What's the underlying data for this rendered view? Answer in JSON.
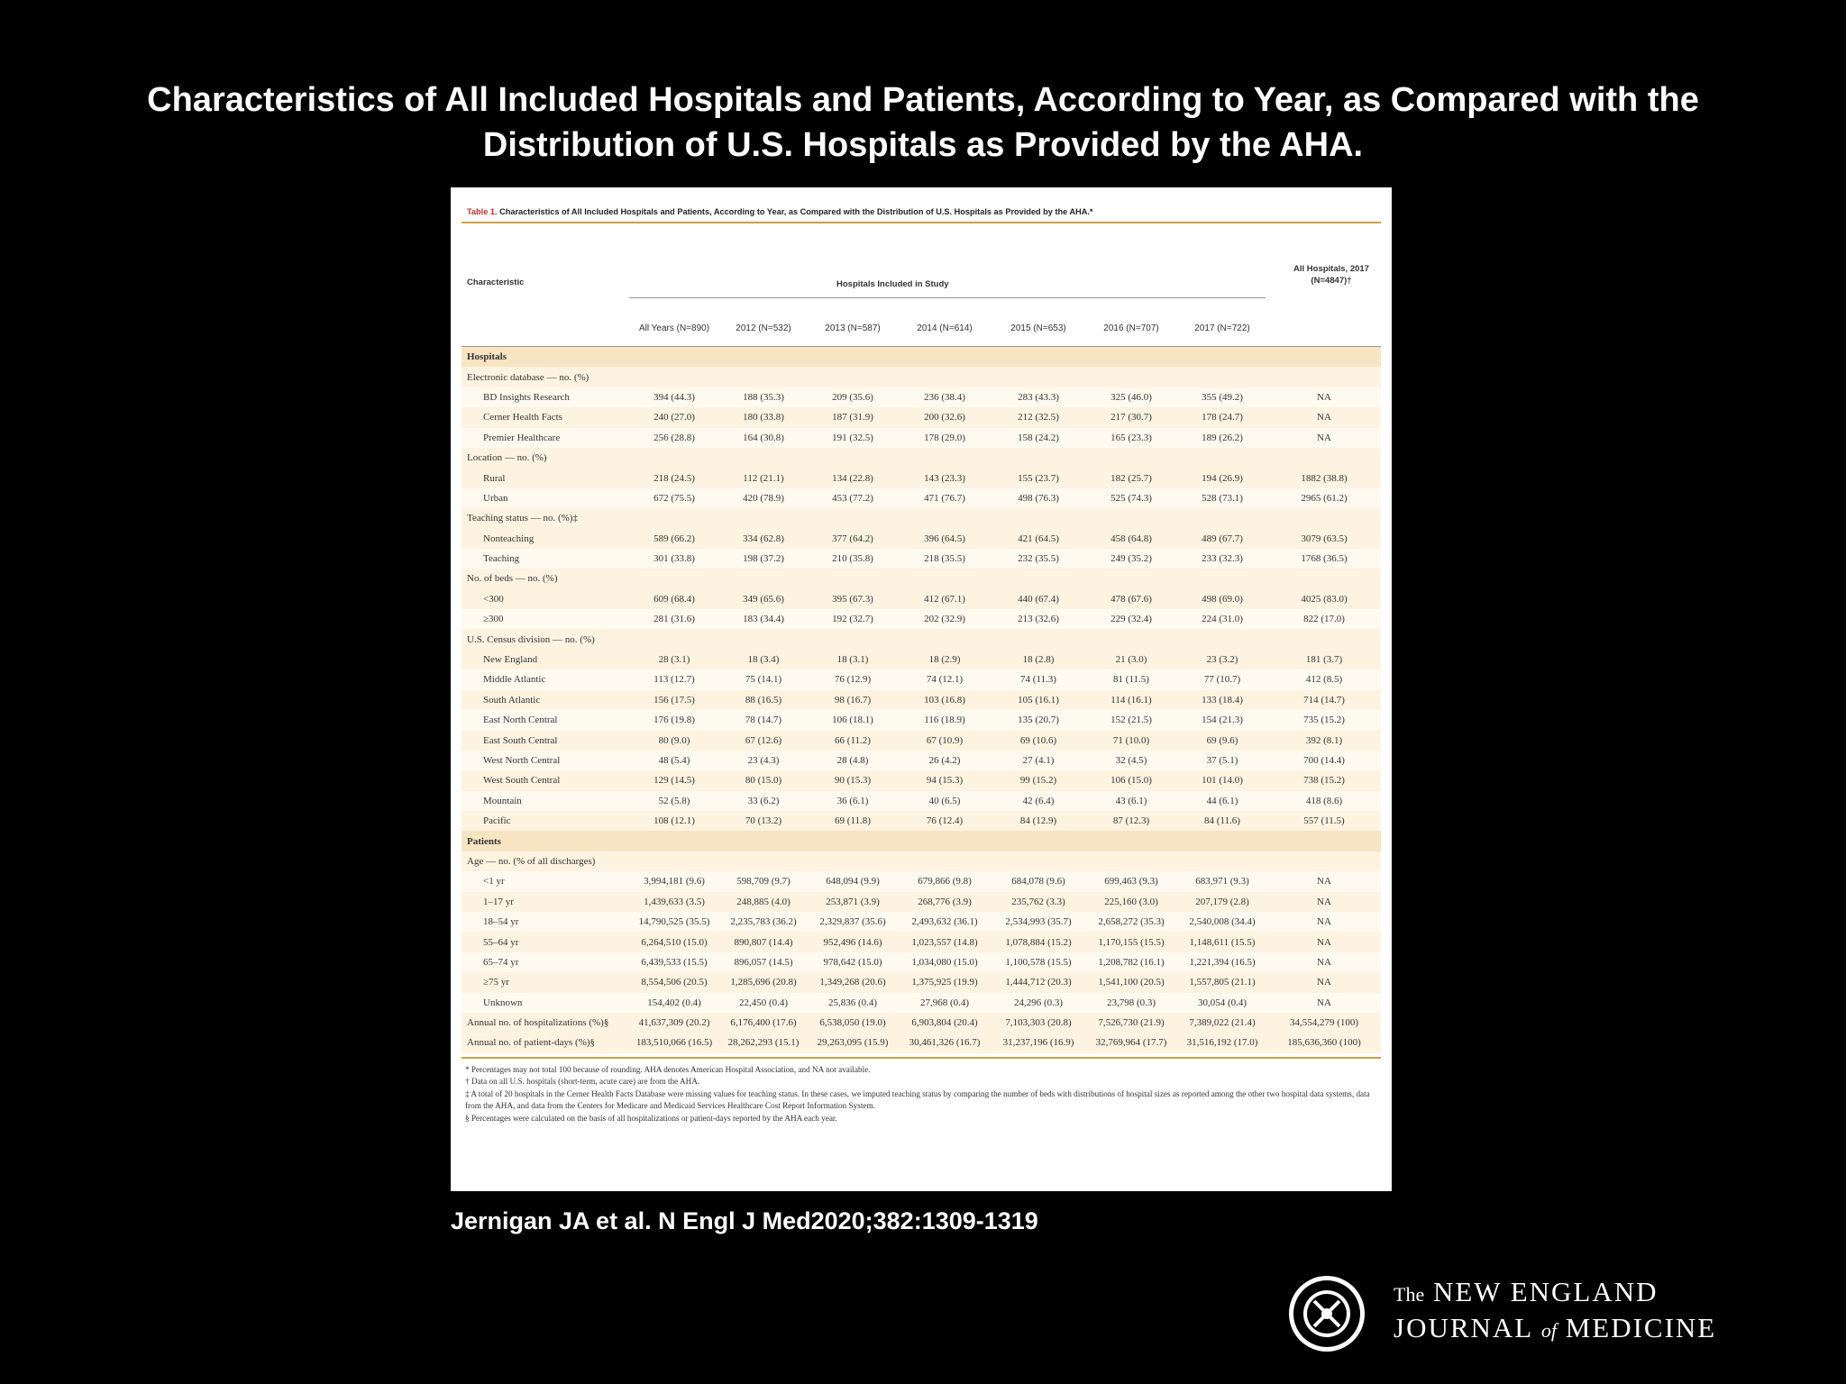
{
  "slide": {
    "title": "Characteristics of All Included Hospitals and Patients, According to Year, as Compared with the Distribution of U.S. Hospitals as Provided by the AHA.",
    "citation": "Jernigan JA et al. N Engl J Med2020;382:1309-1319"
  },
  "logo": {
    "the": "The",
    "line1": "NEW ENGLAND",
    "line2a": "JOURNAL",
    "of": "of",
    "line2b": "MEDICINE",
    "seal_icon": "nejm-seal-icon"
  },
  "table": {
    "label": "Table 1.",
    "caption": "Characteristics of All Included Hospitals and Patients, According to Year, as Compared with the Distribution of U.S. Hospitals as Provided by the AHA.*",
    "header": {
      "characteristic": "Characteristic",
      "group": "Hospitals Included in Study",
      "aha": "All Hospitals, 2017 (N=4847)†"
    },
    "columns": [
      "All Years (N=890)",
      "2012 (N=532)",
      "2013 (N=587)",
      "2014 (N=614)",
      "2015 (N=653)",
      "2016 (N=707)",
      "2017 (N=722)",
      ""
    ],
    "rows": [
      {
        "type": "section",
        "label": "Hospitals"
      },
      {
        "type": "group",
        "label": "Electronic database — no. (%)"
      },
      {
        "type": "sub",
        "label": "BD Insights Research",
        "values": [
          "394 (44.3)",
          "188 (35.3)",
          "209 (35.6)",
          "236 (38.4)",
          "283 (43.3)",
          "325 (46.0)",
          "355 (49.2)",
          "NA"
        ]
      },
      {
        "type": "sub",
        "label": "Cerner Health Facts",
        "values": [
          "240 (27.0)",
          "180 (33.8)",
          "187 (31.9)",
          "200 (32.6)",
          "212 (32.5)",
          "217 (30.7)",
          "178 (24.7)",
          "NA"
        ]
      },
      {
        "type": "sub",
        "label": "Premier Healthcare",
        "values": [
          "256 (28.8)",
          "164 (30.8)",
          "191 (32.5)",
          "178 (29.0)",
          "158 (24.2)",
          "165 (23.3)",
          "189 (26.2)",
          "NA"
        ]
      },
      {
        "type": "group",
        "label": "Location — no. (%)"
      },
      {
        "type": "sub",
        "label": "Rural",
        "values": [
          "218 (24.5)",
          "112 (21.1)",
          "134 (22.8)",
          "143 (23.3)",
          "155 (23.7)",
          "182 (25.7)",
          "194 (26.9)",
          "1882 (38.8)"
        ]
      },
      {
        "type": "sub",
        "label": "Urban",
        "values": [
          "672 (75.5)",
          "420 (78.9)",
          "453 (77.2)",
          "471 (76.7)",
          "498 (76.3)",
          "525 (74.3)",
          "528 (73.1)",
          "2965 (61.2)"
        ]
      },
      {
        "type": "group",
        "label": "Teaching status — no. (%)‡"
      },
      {
        "type": "sub",
        "label": "Nonteaching",
        "values": [
          "589 (66.2)",
          "334 (62.8)",
          "377 (64.2)",
          "396 (64.5)",
          "421 (64.5)",
          "458 (64.8)",
          "489 (67.7)",
          "3079 (63.5)"
        ]
      },
      {
        "type": "sub",
        "label": "Teaching",
        "values": [
          "301 (33.8)",
          "198 (37.2)",
          "210 (35.8)",
          "218 (35.5)",
          "232 (35.5)",
          "249 (35.2)",
          "233 (32.3)",
          "1768 (36.5)"
        ]
      },
      {
        "type": "group",
        "label": "No. of beds — no. (%)"
      },
      {
        "type": "sub",
        "label": "<300",
        "values": [
          "609 (68.4)",
          "349 (65.6)",
          "395 (67.3)",
          "412 (67.1)",
          "440 (67.4)",
          "478 (67.6)",
          "498 (69.0)",
          "4025 (83.0)"
        ]
      },
      {
        "type": "sub",
        "label": "≥300",
        "values": [
          "281 (31.6)",
          "183 (34.4)",
          "192 (32.7)",
          "202 (32.9)",
          "213 (32.6)",
          "229 (32.4)",
          "224 (31.0)",
          "822 (17.0)"
        ]
      },
      {
        "type": "group",
        "label": "U.S. Census division — no. (%)"
      },
      {
        "type": "sub",
        "label": "New England",
        "values": [
          "28 (3.1)",
          "18 (3.4)",
          "18 (3.1)",
          "18 (2.9)",
          "18 (2.8)",
          "21 (3.0)",
          "23 (3.2)",
          "181 (3.7)"
        ]
      },
      {
        "type": "sub",
        "label": "Middle Atlantic",
        "values": [
          "113 (12.7)",
          "75 (14.1)",
          "76 (12.9)",
          "74 (12.1)",
          "74 (11.3)",
          "81 (11.5)",
          "77 (10.7)",
          "412 (8.5)"
        ]
      },
      {
        "type": "sub",
        "label": "South Atlantic",
        "values": [
          "156 (17.5)",
          "88 (16.5)",
          "98 (16.7)",
          "103 (16.8)",
          "105 (16.1)",
          "114 (16.1)",
          "133 (18.4)",
          "714 (14.7)"
        ]
      },
      {
        "type": "sub",
        "label": "East North Central",
        "values": [
          "176 (19.8)",
          "78 (14.7)",
          "106 (18.1)",
          "116 (18.9)",
          "135 (20.7)",
          "152 (21.5)",
          "154 (21.3)",
          "735 (15.2)"
        ]
      },
      {
        "type": "sub",
        "label": "East South Central",
        "values": [
          "80 (9.0)",
          "67 (12.6)",
          "66 (11.2)",
          "67 (10.9)",
          "69 (10.6)",
          "71 (10.0)",
          "69 (9.6)",
          "392 (8.1)"
        ]
      },
      {
        "type": "sub",
        "label": "West North Central",
        "values": [
          "48 (5.4)",
          "23 (4.3)",
          "28 (4.8)",
          "26 (4.2)",
          "27 (4.1)",
          "32 (4.5)",
          "37 (5.1)",
          "700 (14.4)"
        ]
      },
      {
        "type": "sub",
        "label": "West South Central",
        "values": [
          "129 (14.5)",
          "80 (15.0)",
          "90 (15.3)",
          "94 (15.3)",
          "99 (15.2)",
          "106 (15.0)",
          "101 (14.0)",
          "738 (15.2)"
        ]
      },
      {
        "type": "sub",
        "label": "Mountain",
        "values": [
          "52 (5.8)",
          "33 (6.2)",
          "36 (6.1)",
          "40 (6.5)",
          "42 (6.4)",
          "43 (6.1)",
          "44 (6.1)",
          "418 (8.6)"
        ]
      },
      {
        "type": "sub",
        "label": "Pacific",
        "values": [
          "108 (12.1)",
          "70 (13.2)",
          "69 (11.8)",
          "76 (12.4)",
          "84 (12.9)",
          "87 (12.3)",
          "84 (11.6)",
          "557 (11.5)"
        ]
      },
      {
        "type": "section",
        "label": "Patients"
      },
      {
        "type": "group",
        "label": "Age — no. (% of all discharges)"
      },
      {
        "type": "sub",
        "label": "<1 yr",
        "values": [
          "3,994,181 (9.6)",
          "598,709 (9.7)",
          "648,094 (9.9)",
          "679,866 (9.8)",
          "684,078 (9.6)",
          "699,463 (9.3)",
          "683,971 (9.3)",
          "NA"
        ]
      },
      {
        "type": "sub",
        "label": "1–17 yr",
        "values": [
          "1,439,633 (3.5)",
          "248,885 (4.0)",
          "253,871 (3.9)",
          "268,776 (3.9)",
          "235,762 (3.3)",
          "225,160 (3.0)",
          "207,179 (2.8)",
          "NA"
        ]
      },
      {
        "type": "sub",
        "label": "18–54 yr",
        "values": [
          "14,790,525 (35.5)",
          "2,235,783 (36.2)",
          "2,329,837 (35.6)",
          "2,493,632 (36.1)",
          "2,534,993 (35.7)",
          "2,658,272 (35.3)",
          "2,540,008 (34.4)",
          "NA"
        ]
      },
      {
        "type": "sub",
        "label": "55–64 yr",
        "values": [
          "6,264,510 (15.0)",
          "890,807 (14.4)",
          "952,496 (14.6)",
          "1,023,557 (14.8)",
          "1,078,884 (15.2)",
          "1,170,155 (15.5)",
          "1,148,611 (15.5)",
          "NA"
        ]
      },
      {
        "type": "sub",
        "label": "65–74 yr",
        "values": [
          "6,439,533 (15.5)",
          "896,057 (14.5)",
          "978,642 (15.0)",
          "1,034,080 (15.0)",
          "1,100,578 (15.5)",
          "1,208,782 (16.1)",
          "1,221,394 (16.5)",
          "NA"
        ]
      },
      {
        "type": "sub",
        "label": "≥75 yr",
        "values": [
          "8,554,506 (20.5)",
          "1,285,696 (20.8)",
          "1,349,268 (20.6)",
          "1,375,925 (19.9)",
          "1,444,712 (20.3)",
          "1,541,100 (20.5)",
          "1,557,805 (21.1)",
          "NA"
        ]
      },
      {
        "type": "sub",
        "label": "Unknown",
        "values": [
          "154,402 (0.4)",
          "22,450 (0.4)",
          "25,836 (0.4)",
          "27,968 (0.4)",
          "24,296 (0.3)",
          "23,798 (0.3)",
          "30,054 (0.4)",
          "NA"
        ]
      },
      {
        "type": "group",
        "label": "Annual no. of hospitalizations (%)§",
        "values": [
          "41,637,309 (20.2)",
          "6,176,400 (17.6)",
          "6,538,050 (19.0)",
          "6,903,804 (20.4)",
          "7,103,303 (20.8)",
          "7,526,730 (21.9)",
          "7,389,022 (21.4)",
          "34,554,279 (100)"
        ]
      },
      {
        "type": "group",
        "label": "Annual no. of patient-days (%)§",
        "values": [
          "183,510,066 (16.5)",
          "28,262,293 (15.1)",
          "29,263,095 (15.9)",
          "30,461,326 (16.7)",
          "31,237,196 (16.9)",
          "32,769,964 (17.7)",
          "31,516,192 (17.0)",
          "185,636,360 (100)"
        ]
      }
    ],
    "footnotes": [
      "* Percentages may not total 100 because of rounding. AHA denotes American Hospital Association, and NA not available.",
      "† Data on all U.S. hospitals (short-term, acute care) are from the AHA.",
      "‡ A total of 20 hospitals in the Cerner Health Facts Database were missing values for teaching status. In these cases, we imputed teaching status by comparing the number of beds with distributions of hospital sizes as reported among the other two hospital data systems, data from the AHA, and data from the Centers for Medicare and Medicaid Services Healthcare Cost Report Information System.",
      "§ Percentages were calculated on the basis of all hospitalizations or patient-days reported by the AHA each year."
    ]
  }
}
